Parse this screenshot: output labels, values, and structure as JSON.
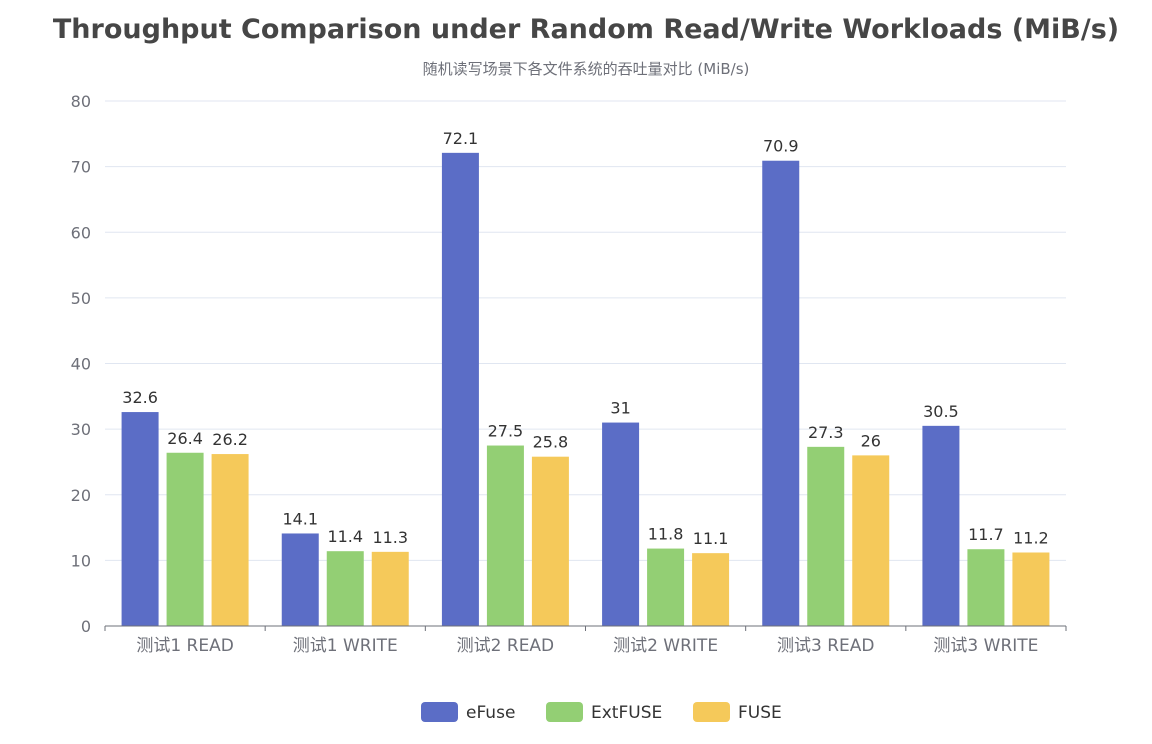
{
  "chart_data": {
    "type": "bar",
    "title": "Throughput Comparison under Random Read/Write Workloads (MiB/s)",
    "subtitle": "随机读写场景下各文件系统的吞吐量对比 (MiB/s)",
    "xlabel": "",
    "ylabel": "",
    "ylim": [
      0,
      80
    ],
    "yticks": [
      0,
      10,
      20,
      30,
      40,
      50,
      60,
      70,
      80
    ],
    "grid": true,
    "legend_position": "bottom-center",
    "categories": [
      "测试1 READ",
      "测试1 WRITE",
      "测试2 READ",
      "测试2 WRITE",
      "测试3 READ",
      "测试3 WRITE"
    ],
    "series": [
      {
        "name": "eFuse",
        "color": "#5b6dc6",
        "values": [
          32.6,
          14.1,
          72.1,
          31,
          70.9,
          30.5
        ]
      },
      {
        "name": "ExtFUSE",
        "color": "#93cf74",
        "values": [
          26.4,
          11.4,
          27.5,
          11.8,
          27.3,
          11.7
        ]
      },
      {
        "name": "FUSE",
        "color": "#f5c95a",
        "values": [
          26.2,
          11.3,
          25.8,
          11.1,
          26,
          11.2
        ]
      }
    ]
  }
}
